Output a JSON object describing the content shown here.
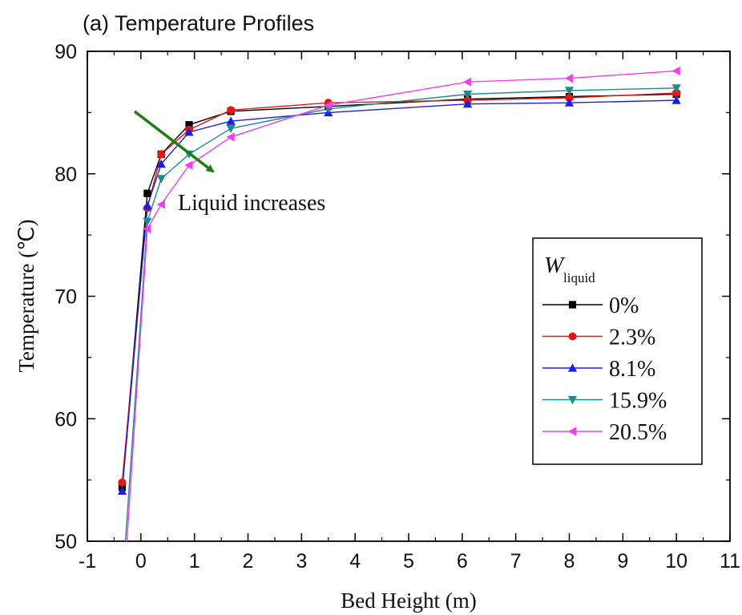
{
  "chart_data": {
    "type": "line",
    "title": "(a) Temperature Profiles",
    "xlabel": "Bed Height (m)",
    "ylabel": "Temperature (℃)",
    "xlim": [
      -1,
      11
    ],
    "ylim": [
      50,
      90
    ],
    "xticks": [
      "-1",
      "0",
      "1",
      "2",
      "3",
      "4",
      "5",
      "6",
      "7",
      "8",
      "9",
      "10",
      "11"
    ],
    "yticks": [
      "50",
      "60",
      "70",
      "80",
      "90"
    ],
    "grid": false,
    "legend_position": "right",
    "legend_title": "W",
    "legend_title_sub": "liquid",
    "annotation": "Liquid increases",
    "annotation_arrow_color": "#1e7d12",
    "series": [
      {
        "name": "0%",
        "color": "#000000",
        "marker": "square",
        "x": [
          -0.35,
          0.12,
          0.38,
          0.9,
          1.68,
          3.5,
          6.1,
          8.0,
          10.0
        ],
        "y": [
          54.4,
          78.4,
          81.6,
          84.0,
          85.1,
          85.5,
          86.1,
          86.3,
          86.5
        ]
      },
      {
        "name": "2.3%",
        "color": "#e8160c",
        "marker": "circle",
        "x": [
          -0.35,
          0.12,
          0.38,
          0.9,
          1.68,
          3.5,
          6.1,
          8.0,
          10.0
        ],
        "y": [
          54.8,
          77.2,
          81.6,
          83.6,
          85.2,
          85.8,
          86.0,
          86.2,
          86.6
        ]
      },
      {
        "name": "8.1%",
        "color": "#1a1ee6",
        "marker": "triangle-up",
        "x": [
          -0.35,
          0.12,
          0.38,
          0.9,
          1.68,
          3.5,
          6.1,
          8.0,
          10.0
        ],
        "y": [
          54.1,
          77.4,
          80.8,
          83.4,
          84.3,
          85.0,
          85.7,
          85.8,
          86.0
        ]
      },
      {
        "name": "15.9%",
        "color": "#1f8a8a",
        "marker": "triangle-down",
        "x": [
          -0.35,
          0.12,
          0.38,
          0.9,
          1.68,
          3.5,
          6.1,
          8.0,
          10.0
        ],
        "y": [
          46.0,
          76.1,
          79.6,
          81.6,
          83.7,
          85.3,
          86.5,
          86.8,
          87.0
        ]
      },
      {
        "name": "20.5%",
        "color": "#f03ff0",
        "marker": "triangle-left",
        "x": [
          -0.35,
          0.12,
          0.38,
          0.9,
          1.68,
          3.5,
          6.1,
          8.0,
          10.0
        ],
        "y": [
          44.0,
          75.5,
          77.5,
          80.7,
          83.0,
          85.6,
          87.5,
          87.8,
          88.4
        ]
      }
    ]
  }
}
